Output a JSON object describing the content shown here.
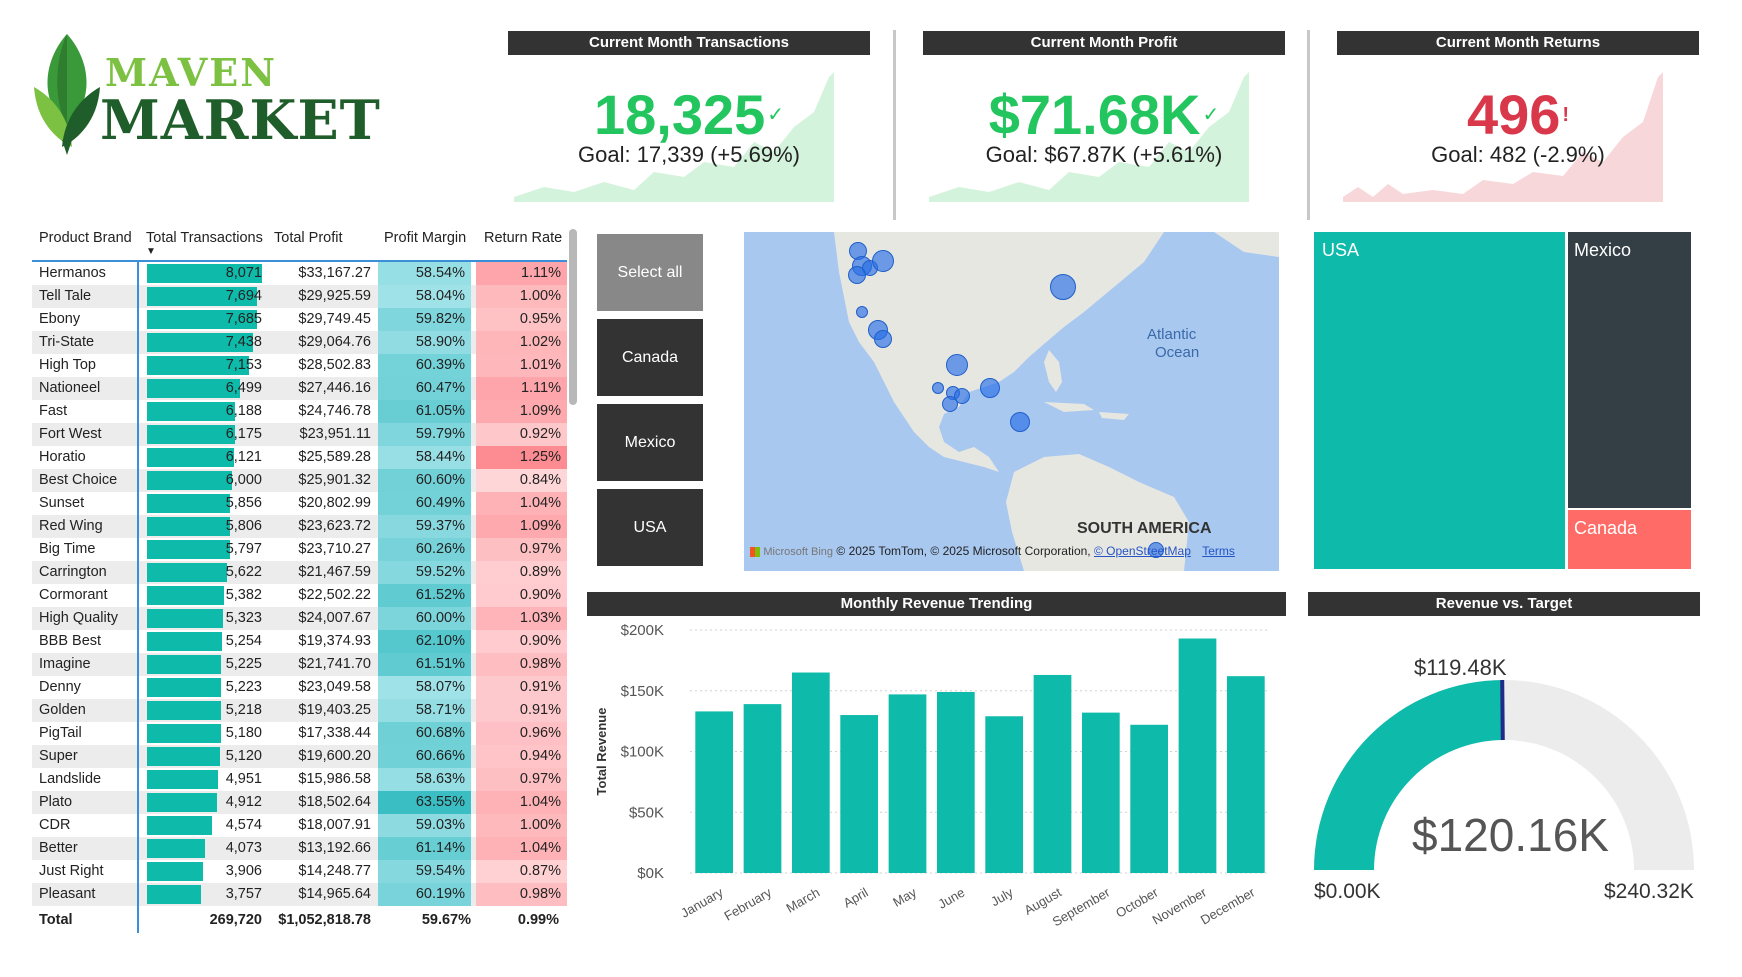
{
  "logo": {
    "line1": "MAVEN",
    "line2": "MARKET"
  },
  "kpis": [
    {
      "title": "Current Month Transactions",
      "value": "18,325",
      "status": "✓",
      "goal": "Goal: 17,339 (+5.69%)",
      "color": "#22c55e",
      "fill": "#d4f3dc"
    },
    {
      "title": "Current Month Profit",
      "value": "$71.68K",
      "status": "✓",
      "goal": "Goal: $67.87K (+5.61%)",
      "color": "#22c55e",
      "fill": "#d4f3dc"
    },
    {
      "title": "Current Month Returns",
      "value": "496",
      "status": "!",
      "goal": "Goal: 482 (-2.9%)",
      "color": "#d9384a",
      "fill": "#f8d7da"
    }
  ],
  "table": {
    "headers": [
      "Product Brand",
      "Total Transactions",
      "Total Profit",
      "Profit Margin",
      "Return Rate"
    ],
    "rows": [
      {
        "brand": "Hermanos",
        "tx": "8,071",
        "txv": 8071,
        "profit": "$33,167.27",
        "margin": "58.54%",
        "mv": 58.54,
        "rr": "1.11%",
        "rv": 1.11
      },
      {
        "brand": "Tell Tale",
        "tx": "7,694",
        "txv": 7694,
        "profit": "$29,925.59",
        "margin": "58.04%",
        "mv": 58.04,
        "rr": "1.00%",
        "rv": 1.0
      },
      {
        "brand": "Ebony",
        "tx": "7,685",
        "txv": 7685,
        "profit": "$29,749.45",
        "margin": "59.82%",
        "mv": 59.82,
        "rr": "0.95%",
        "rv": 0.95
      },
      {
        "brand": "Tri-State",
        "tx": "7,438",
        "txv": 7438,
        "profit": "$29,064.76",
        "margin": "58.90%",
        "mv": 58.9,
        "rr": "1.02%",
        "rv": 1.02
      },
      {
        "brand": "High Top",
        "tx": "7,153",
        "txv": 7153,
        "profit": "$28,502.83",
        "margin": "60.39%",
        "mv": 60.39,
        "rr": "1.01%",
        "rv": 1.01
      },
      {
        "brand": "Nationeel",
        "tx": "6,499",
        "txv": 6499,
        "profit": "$27,446.16",
        "margin": "60.47%",
        "mv": 60.47,
        "rr": "1.11%",
        "rv": 1.11
      },
      {
        "brand": "Fast",
        "tx": "6,188",
        "txv": 6188,
        "profit": "$24,746.78",
        "margin": "61.05%",
        "mv": 61.05,
        "rr": "1.09%",
        "rv": 1.09
      },
      {
        "brand": "Fort West",
        "tx": "6,175",
        "txv": 6175,
        "profit": "$23,951.11",
        "margin": "59.79%",
        "mv": 59.79,
        "rr": "0.92%",
        "rv": 0.92
      },
      {
        "brand": "Horatio",
        "tx": "6,121",
        "txv": 6121,
        "profit": "$25,589.28",
        "margin": "58.44%",
        "mv": 58.44,
        "rr": "1.25%",
        "rv": 1.25
      },
      {
        "brand": "Best Choice",
        "tx": "6,000",
        "txv": 6000,
        "profit": "$25,901.32",
        "margin": "60.60%",
        "mv": 60.6,
        "rr": "0.84%",
        "rv": 0.84
      },
      {
        "brand": "Sunset",
        "tx": "5,856",
        "txv": 5856,
        "profit": "$20,802.99",
        "margin": "60.49%",
        "mv": 60.49,
        "rr": "1.04%",
        "rv": 1.04
      },
      {
        "brand": "Red Wing",
        "tx": "5,806",
        "txv": 5806,
        "profit": "$23,623.72",
        "margin": "59.37%",
        "mv": 59.37,
        "rr": "1.09%",
        "rv": 1.09
      },
      {
        "brand": "Big Time",
        "tx": "5,797",
        "txv": 5797,
        "profit": "$23,710.27",
        "margin": "60.26%",
        "mv": 60.26,
        "rr": "0.97%",
        "rv": 0.97
      },
      {
        "brand": "Carrington",
        "tx": "5,622",
        "txv": 5622,
        "profit": "$21,467.59",
        "margin": "59.52%",
        "mv": 59.52,
        "rr": "0.89%",
        "rv": 0.89
      },
      {
        "brand": "Cormorant",
        "tx": "5,382",
        "txv": 5382,
        "profit": "$22,502.22",
        "margin": "61.52%",
        "mv": 61.52,
        "rr": "0.90%",
        "rv": 0.9
      },
      {
        "brand": "High Quality",
        "tx": "5,323",
        "txv": 5323,
        "profit": "$24,007.67",
        "margin": "60.00%",
        "mv": 60.0,
        "rr": "1.03%",
        "rv": 1.03
      },
      {
        "brand": "BBB Best",
        "tx": "5,254",
        "txv": 5254,
        "profit": "$19,374.93",
        "margin": "62.10%",
        "mv": 62.1,
        "rr": "0.90%",
        "rv": 0.9
      },
      {
        "brand": "Imagine",
        "tx": "5,225",
        "txv": 5225,
        "profit": "$21,741.70",
        "margin": "61.51%",
        "mv": 61.51,
        "rr": "0.98%",
        "rv": 0.98
      },
      {
        "brand": "Denny",
        "tx": "5,223",
        "txv": 5223,
        "profit": "$23,049.58",
        "margin": "58.07%",
        "mv": 58.07,
        "rr": "0.91%",
        "rv": 0.91
      },
      {
        "brand": "Golden",
        "tx": "5,218",
        "txv": 5218,
        "profit": "$19,403.25",
        "margin": "58.71%",
        "mv": 58.71,
        "rr": "0.91%",
        "rv": 0.91
      },
      {
        "brand": "PigTail",
        "tx": "5,180",
        "txv": 5180,
        "profit": "$17,338.44",
        "margin": "60.68%",
        "mv": 60.68,
        "rr": "0.96%",
        "rv": 0.96
      },
      {
        "brand": "Super",
        "tx": "5,120",
        "txv": 5120,
        "profit": "$19,600.20",
        "margin": "60.66%",
        "mv": 60.66,
        "rr": "0.94%",
        "rv": 0.94
      },
      {
        "brand": "Landslide",
        "tx": "4,951",
        "txv": 4951,
        "profit": "$15,986.58",
        "margin": "58.63%",
        "mv": 58.63,
        "rr": "0.97%",
        "rv": 0.97
      },
      {
        "brand": "Plato",
        "tx": "4,912",
        "txv": 4912,
        "profit": "$18,502.64",
        "margin": "63.55%",
        "mv": 63.55,
        "rr": "1.04%",
        "rv": 1.04
      },
      {
        "brand": "CDR",
        "tx": "4,574",
        "txv": 4574,
        "profit": "$18,007.91",
        "margin": "59.03%",
        "mv": 59.03,
        "rr": "1.00%",
        "rv": 1.0
      },
      {
        "brand": "Better",
        "tx": "4,073",
        "txv": 4073,
        "profit": "$13,192.66",
        "margin": "61.14%",
        "mv": 61.14,
        "rr": "1.04%",
        "rv": 1.04
      },
      {
        "brand": "Just Right",
        "tx": "3,906",
        "txv": 3906,
        "profit": "$14,248.77",
        "margin": "59.54%",
        "mv": 59.54,
        "rr": "0.87%",
        "rv": 0.87
      },
      {
        "brand": "Pleasant",
        "tx": "3,757",
        "txv": 3757,
        "profit": "$14,965.64",
        "margin": "60.19%",
        "mv": 60.19,
        "rr": "0.98%",
        "rv": 0.98
      }
    ],
    "total": {
      "label": "Total",
      "tx": "269,720",
      "profit": "$1,052,818.78",
      "margin": "59.67%",
      "rr": "0.99%"
    }
  },
  "slicer": [
    "Select all",
    "Canada",
    "Mexico",
    "USA"
  ],
  "map": {
    "ocean_label_1": "Atlantic",
    "ocean_label_2": "Ocean",
    "continent_label": "SOUTH AMERICA",
    "bing": "Microsoft Bing",
    "copyright": "© 2025 TomTom, © 2025 Microsoft Corporation,",
    "osm": "© OpenStreetMap",
    "terms": "Terms"
  },
  "treemap": {
    "usa": "USA",
    "mexico": "Mexico",
    "canada": "Canada"
  },
  "revenue_chart": {
    "header": "Monthly Revenue Trending",
    "chart_data": {
      "type": "bar",
      "title": "Monthly Revenue Trending",
      "xlabel": "",
      "ylabel": "Total Revenue",
      "ylim": [
        0,
        200000
      ],
      "yticks": [
        "$200K",
        "$150K",
        "$100K",
        "$50K",
        "$0K"
      ],
      "categories": [
        "January",
        "February",
        "March",
        "April",
        "May",
        "June",
        "July",
        "August",
        "September",
        "October",
        "November",
        "December"
      ],
      "values": [
        133000,
        139000,
        165000,
        130000,
        147000,
        149000,
        129000,
        163000,
        132000,
        122000,
        193000,
        162000
      ]
    }
  },
  "gauge": {
    "header": "Revenue vs. Target",
    "value": "$120.16K",
    "target": "$119.48K",
    "min": "$0.00K",
    "max": "$240.32K",
    "fraction": 0.5,
    "target_fraction": 0.497
  },
  "colors": {
    "teal": "#0ebaa9",
    "dark": "#333333",
    "red": "#ff6b6b",
    "green": "#22c55e"
  }
}
